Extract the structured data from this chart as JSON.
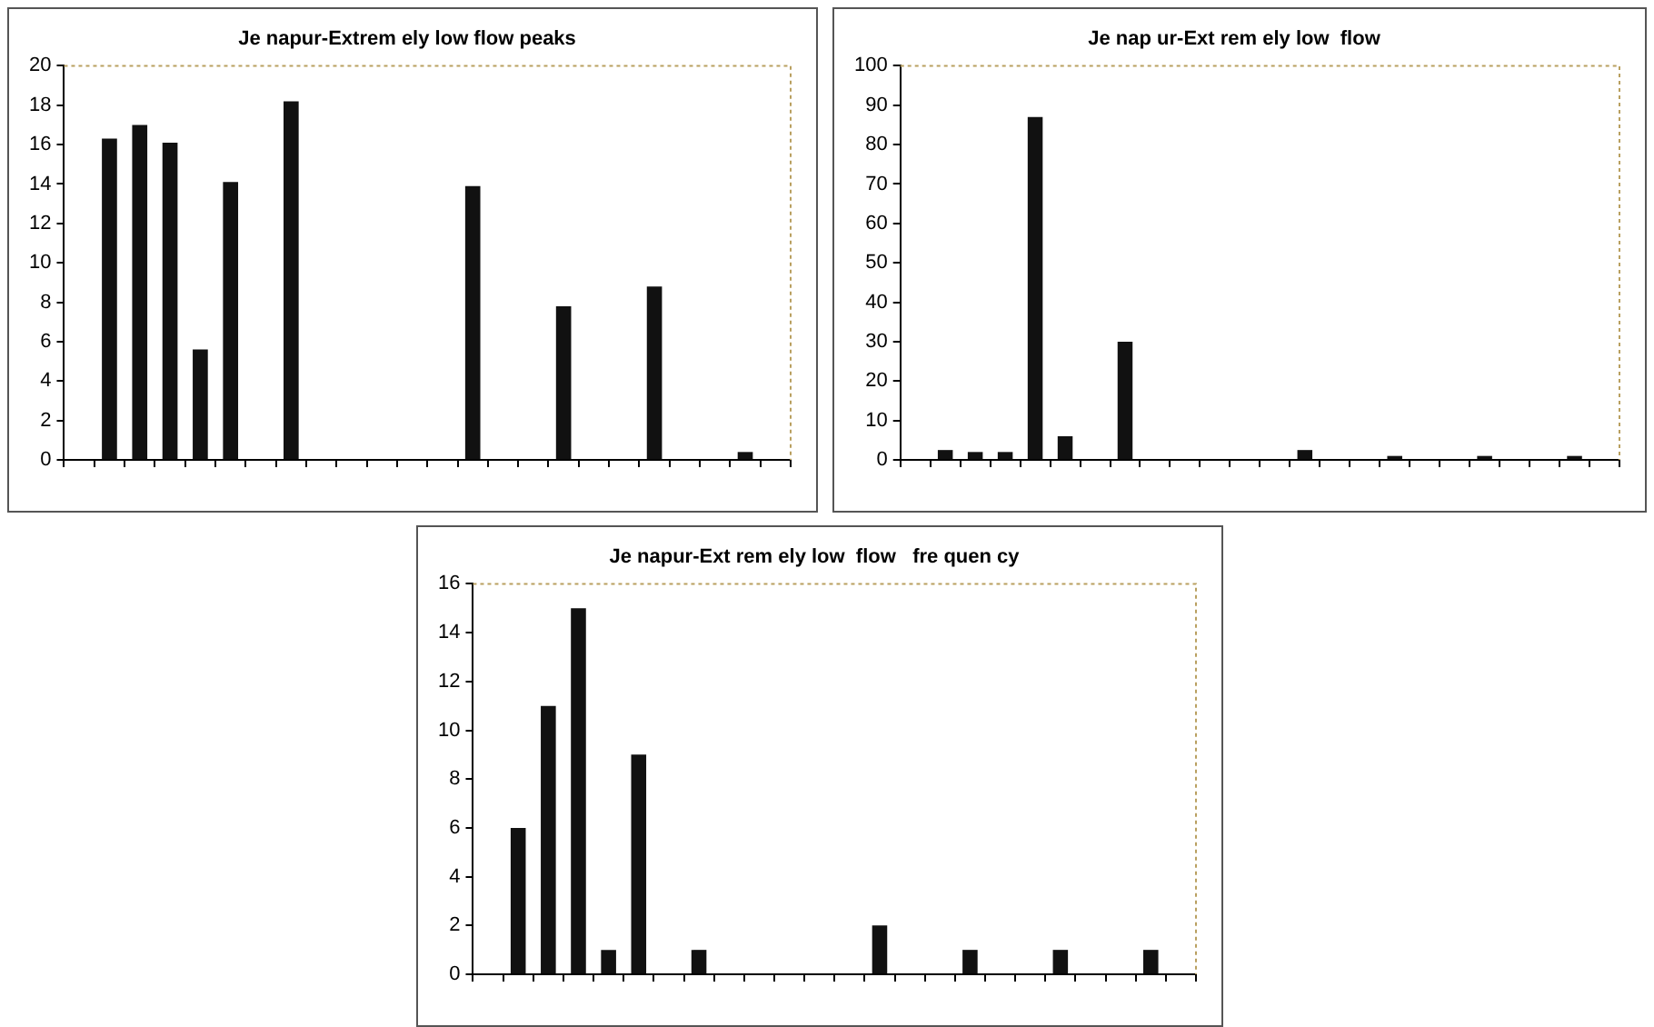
{
  "chart_data": [
    {
      "type": "bar",
      "title": "Je napur-Extrem ely low flow peaks",
      "categories": [
        null,
        null,
        null,
        null,
        null,
        null,
        null,
        null,
        null,
        null,
        null,
        null,
        null,
        null,
        null,
        null,
        null,
        null,
        null,
        null,
        null,
        null,
        null,
        null
      ],
      "values": [
        0,
        16.3,
        17,
        16.1,
        5.6,
        14.1,
        0,
        18.2,
        0,
        0,
        0,
        0,
        0,
        13.9,
        0,
        0,
        7.8,
        0,
        0,
        8.8,
        0,
        0,
        0.4,
        0
      ],
      "color": "#111111",
      "ylim": [
        0,
        20
      ],
      "yticks": [
        0,
        2,
        4,
        6,
        8,
        10,
        12,
        14,
        16,
        18,
        20
      ],
      "grid": false,
      "tick_labels": "y"
    },
    {
      "type": "bar",
      "title": "Je nap ur-Ext rem ely low  flow",
      "categories": [
        null,
        null,
        null,
        null,
        null,
        null,
        null,
        null,
        null,
        null,
        null,
        null,
        null,
        null,
        null,
        null,
        null,
        null,
        null,
        null,
        null,
        null,
        null,
        null
      ],
      "values": [
        0,
        2.5,
        2,
        2,
        87,
        6,
        0,
        30,
        0,
        0,
        0,
        0,
        0,
        2.5,
        0,
        0,
        1,
        0,
        0,
        1,
        0,
        0,
        1,
        0
      ],
      "color": "#111111",
      "ylim": [
        0,
        100
      ],
      "yticks": [
        0,
        10,
        20,
        30,
        40,
        50,
        60,
        70,
        80,
        90,
        100
      ],
      "grid": false,
      "tick_labels": "y"
    },
    {
      "type": "bar",
      "title": "Je napur-Ext rem ely low  flow   fre quen cy",
      "categories": [
        null,
        null,
        null,
        null,
        null,
        null,
        null,
        null,
        null,
        null,
        null,
        null,
        null,
        null,
        null,
        null,
        null,
        null,
        null,
        null,
        null,
        null,
        null,
        null
      ],
      "values": [
        0,
        6,
        11,
        15,
        1,
        9,
        0,
        1,
        0,
        0,
        0,
        0,
        0,
        2,
        0,
        0,
        1,
        0,
        0,
        1,
        0,
        0,
        1,
        0
      ],
      "color": "#111111",
      "ylim": [
        0,
        16
      ],
      "yticks": [
        0,
        2,
        4,
        6,
        8,
        10,
        12,
        14,
        16
      ],
      "grid": false,
      "tick_labels": "y"
    }
  ]
}
